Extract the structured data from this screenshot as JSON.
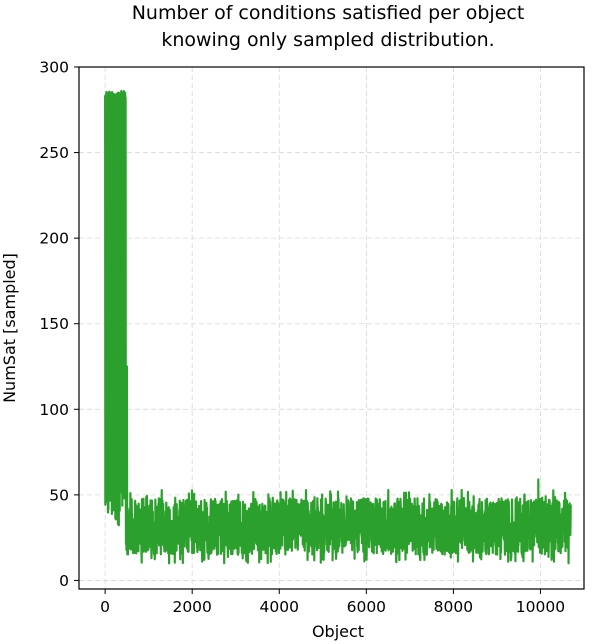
{
  "chart_data": {
    "type": "line",
    "title_lines": [
      "Number of conditions satisfied per object",
      "knowing only sampled distribution."
    ],
    "xlabel": "Object",
    "ylabel": "NumSat [sampled]",
    "xlim": [
      -600,
      11000
    ],
    "ylim": [
      -5,
      300
    ],
    "xticks": [
      0,
      2000,
      4000,
      6000,
      8000,
      10000
    ],
    "yticks": [
      0,
      50,
      100,
      150,
      200,
      250,
      300
    ],
    "grid": true,
    "line_color": "#2ca02c",
    "n_points": 10700,
    "series": [
      {
        "segments": [
          {
            "x_start": 0,
            "x_end": 480,
            "low": 28,
            "high": 286
          },
          {
            "x_start": 480,
            "x_end": 10700,
            "low": 10,
            "high": 59,
            "typical_low": 15,
            "typical_high": 48
          }
        ],
        "peak_annotations": [
          {
            "x": 40,
            "y": 193
          },
          {
            "x": 500,
            "y": 125
          },
          {
            "x": 9950,
            "y": 59
          }
        ]
      }
    ]
  }
}
